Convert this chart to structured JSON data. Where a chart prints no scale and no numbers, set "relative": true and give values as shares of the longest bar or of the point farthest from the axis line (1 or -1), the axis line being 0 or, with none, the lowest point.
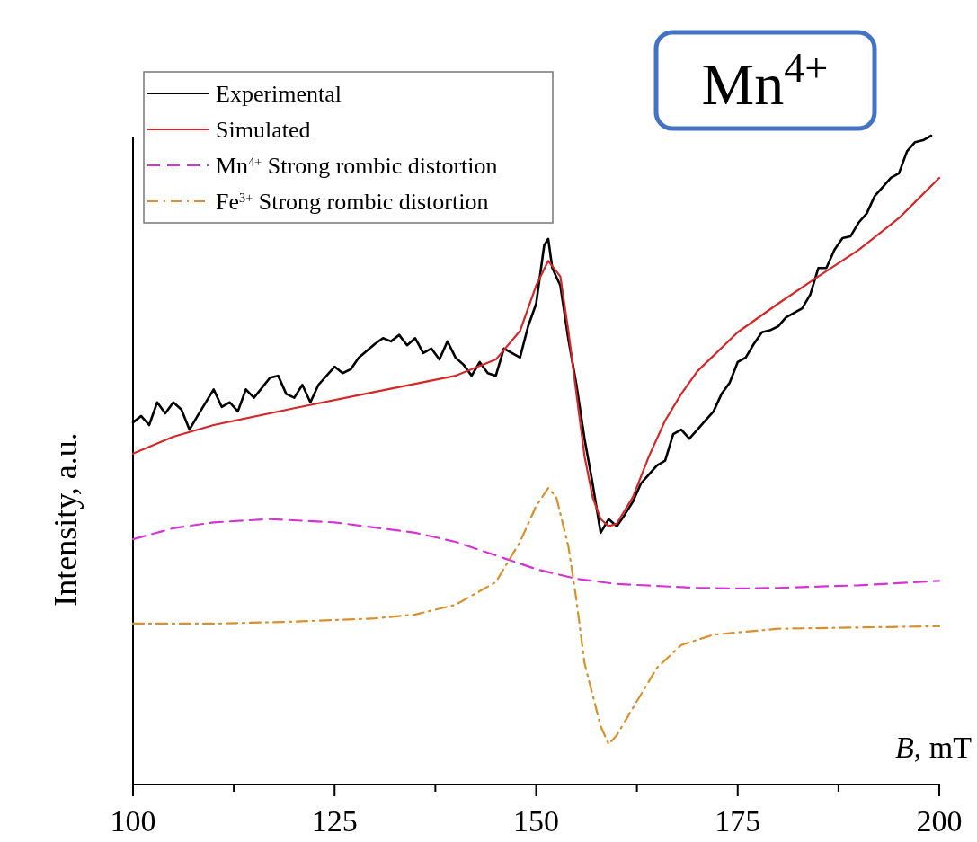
{
  "chart_data": {
    "type": "line",
    "relative": true,
    "xlabel": "B, mT",
    "ylabel": "Intensity, a.u.",
    "xlim": [
      100,
      200
    ],
    "xticks": [
      100,
      {
        "value": 112.5,
        "label": null
      },
      125,
      {
        "value": 137.5,
        "label": null
      },
      150,
      {
        "value": 162.5,
        "label": null
      },
      175,
      {
        "value": 187.5,
        "label": null
      },
      200
    ],
    "legend": "top left",
    "tick_labels": "x",
    "annotations": [
      "Mn$^{4+}$"
    ],
    "series": [
      {
        "name": "Experimental",
        "color": "#000000",
        "line_style": "solid",
        "x": [
          100,
          101,
          102,
          103,
          104,
          105,
          106,
          107,
          108,
          110,
          111,
          112,
          113,
          114,
          115,
          117,
          118,
          119,
          120,
          121,
          122,
          123,
          125,
          126,
          127,
          128,
          130,
          131,
          132,
          133,
          134,
          135,
          136,
          137,
          138,
          139,
          140,
          141,
          142,
          143,
          144,
          145,
          146,
          147,
          148,
          149,
          150,
          151,
          151.5,
          152,
          153,
          154,
          155,
          156,
          157,
          158,
          159,
          160,
          161,
          162,
          163,
          164,
          165,
          166,
          167,
          168,
          169,
          170,
          171,
          172,
          173,
          174,
          175,
          176,
          177,
          178,
          179,
          180,
          181,
          182,
          183,
          184,
          185,
          186,
          187,
          188,
          189,
          190,
          191,
          192,
          193,
          194,
          195,
          196,
          197,
          198,
          199
        ],
        "values": [
          0.558,
          0.568,
          0.554,
          0.589,
          0.572,
          0.589,
          0.578,
          0.547,
          0.568,
          0.609,
          0.582,
          0.589,
          0.575,
          0.609,
          0.596,
          0.627,
          0.63,
          0.602,
          0.596,
          0.616,
          0.589,
          0.616,
          0.644,
          0.634,
          0.64,
          0.658,
          0.679,
          0.688,
          0.683,
          0.693,
          0.677,
          0.688,
          0.665,
          0.672,
          0.655,
          0.683,
          0.658,
          0.647,
          0.63,
          0.651,
          0.634,
          0.63,
          0.672,
          0.665,
          0.658,
          0.706,
          0.741,
          0.831,
          0.841,
          0.796,
          0.769,
          0.686,
          0.616,
          0.533,
          0.464,
          0.388,
          0.409,
          0.398,
          0.416,
          0.436,
          0.464,
          0.478,
          0.492,
          0.499,
          0.54,
          0.547,
          0.533,
          0.547,
          0.561,
          0.575,
          0.602,
          0.619,
          0.651,
          0.658,
          0.679,
          0.697,
          0.7,
          0.706,
          0.72,
          0.727,
          0.734,
          0.755,
          0.796,
          0.796,
          0.824,
          0.842,
          0.845,
          0.866,
          0.88,
          0.907,
          0.921,
          0.935,
          0.942,
          0.976,
          0.99,
          0.993,
          1.0
        ]
      },
      {
        "name": "Simulated",
        "color": "#d62728",
        "line_style": "solid",
        "x": [
          100,
          105,
          110,
          120,
          130,
          140,
          145,
          148,
          150,
          151.5,
          153,
          154,
          155,
          156,
          157,
          158,
          159,
          160,
          162,
          164,
          166,
          168,
          170,
          175,
          180,
          185,
          190,
          195,
          200
        ],
        "values": [
          0.51,
          0.536,
          0.554,
          0.58,
          0.605,
          0.63,
          0.655,
          0.699,
          0.769,
          0.807,
          0.783,
          0.699,
          0.602,
          0.506,
          0.443,
          0.409,
          0.398,
          0.402,
          0.443,
          0.506,
          0.561,
          0.602,
          0.637,
          0.697,
          0.741,
          0.783,
          0.824,
          0.873,
          0.935
        ]
      },
      {
        "name": "Mn$^{4+}$ Strong rombic distortion",
        "color": "#d633d6",
        "line_style": "dashed",
        "x": [
          100,
          105,
          110,
          117,
          125,
          135,
          140,
          145,
          150,
          155,
          160,
          170,
          175,
          180,
          190,
          200
        ],
        "values": [
          0.378,
          0.395,
          0.404,
          0.409,
          0.404,
          0.388,
          0.374,
          0.353,
          0.332,
          0.317,
          0.309,
          0.303,
          0.302,
          0.303,
          0.307,
          0.314
        ]
      },
      {
        "name": "Fe$^{3+}$ Strong rombic distortion",
        "color": "#d98f2b",
        "line_style": "dashdot",
        "x": [
          100,
          110,
          120,
          130,
          135,
          140,
          145,
          148,
          150,
          151.5,
          152.5,
          154,
          155,
          156,
          158,
          159,
          160,
          162,
          165,
          168,
          172,
          180,
          190,
          200
        ],
        "values": [
          0.248,
          0.248,
          0.251,
          0.256,
          0.262,
          0.277,
          0.312,
          0.374,
          0.429,
          0.457,
          0.443,
          0.367,
          0.284,
          0.187,
          0.09,
          0.062,
          0.076,
          0.118,
          0.18,
          0.215,
          0.231,
          0.24,
          0.242,
          0.244
        ]
      }
    ]
  }
}
